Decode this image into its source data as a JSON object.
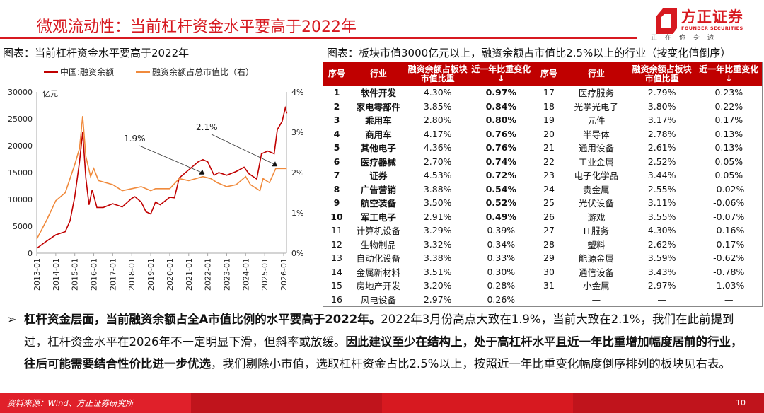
{
  "header": {
    "title": "微观流动性：当前杠杆资金水平要高于2022年",
    "logo_cn": "方正证券",
    "logo_en": "FOUNDER SECURITIES",
    "slogan": "正在你身边",
    "brand_color": "#d71920"
  },
  "left_chart": {
    "caption": "图表：当前杠杆资金水平要高于2022年"
  },
  "chart_data": {
    "type": "line",
    "legend_position": "top",
    "y_left": {
      "label": "亿元",
      "ticks": [
        "0",
        "5000",
        "10000",
        "15000",
        "20000",
        "25000",
        "30000"
      ],
      "range": [
        0,
        30000
      ]
    },
    "y_right": {
      "ticks": [
        "0%",
        "1%",
        "2%",
        "3%",
        "4%"
      ],
      "range": [
        0,
        4
      ]
    },
    "x_ticks": [
      "2013-01",
      "2014-01",
      "2015-01",
      "2016-01",
      "2017-01",
      "2018-01",
      "2019-01",
      "2020-01",
      "2021-01",
      "2022-01",
      "2023-01",
      "2024-01",
      "2025-01",
      "2026-01"
    ],
    "series": [
      {
        "name": "中国:融资余额",
        "axis": "left",
        "color": "#c00000",
        "points": [
          [
            "2013-01",
            900
          ],
          [
            "2013-07",
            2200
          ],
          [
            "2014-01",
            3400
          ],
          [
            "2014-07",
            4000
          ],
          [
            "2014-10",
            6000
          ],
          [
            "2015-01",
            10500
          ],
          [
            "2015-04",
            17000
          ],
          [
            "2015-06",
            22500
          ],
          [
            "2015-08",
            14000
          ],
          [
            "2015-10",
            9000
          ],
          [
            "2015-12",
            11800
          ],
          [
            "2016-03",
            8500
          ],
          [
            "2016-07",
            8500
          ],
          [
            "2017-01",
            9200
          ],
          [
            "2017-07",
            8600
          ],
          [
            "2018-01",
            10200
          ],
          [
            "2018-03",
            10500
          ],
          [
            "2018-07",
            9500
          ],
          [
            "2018-10",
            7700
          ],
          [
            "2019-01",
            7300
          ],
          [
            "2019-04",
            9500
          ],
          [
            "2019-07",
            9000
          ],
          [
            "2020-01",
            10400
          ],
          [
            "2020-04",
            10300
          ],
          [
            "2020-07",
            14000
          ],
          [
            "2021-01",
            15500
          ],
          [
            "2021-07",
            17000
          ],
          [
            "2021-10",
            17400
          ],
          [
            "2022-01",
            17000
          ],
          [
            "2022-05",
            14500
          ],
          [
            "2022-08",
            15000
          ],
          [
            "2023-01",
            14500
          ],
          [
            "2023-07",
            15200
          ],
          [
            "2023-12",
            16000
          ],
          [
            "2024-03",
            14800
          ],
          [
            "2024-08",
            13800
          ],
          [
            "2024-11",
            18500
          ],
          [
            "2025-03",
            19000
          ],
          [
            "2025-07",
            18500
          ],
          [
            "2025-09",
            23000
          ],
          [
            "2025-12",
            24500
          ],
          [
            "2026-02",
            27000
          ],
          [
            "2026-03",
            26000
          ]
        ]
      },
      {
        "name": "融资余额占总市值比（右）",
        "axis": "right",
        "color": "#f08a3c",
        "points": [
          [
            "2013-01",
            0.35
          ],
          [
            "2013-07",
            0.8
          ],
          [
            "2014-01",
            1.3
          ],
          [
            "2014-07",
            1.5
          ],
          [
            "2015-01",
            2.2
          ],
          [
            "2015-04",
            2.6
          ],
          [
            "2015-06",
            3.4
          ],
          [
            "2015-08",
            2.4
          ],
          [
            "2015-11",
            1.9
          ],
          [
            "2016-01",
            2.1
          ],
          [
            "2016-04",
            1.8
          ],
          [
            "2017-01",
            1.7
          ],
          [
            "2017-07",
            1.55
          ],
          [
            "2018-01",
            1.6
          ],
          [
            "2018-07",
            1.65
          ],
          [
            "2019-01",
            1.55
          ],
          [
            "2019-04",
            1.6
          ],
          [
            "2020-01",
            1.6
          ],
          [
            "2020-07",
            1.85
          ],
          [
            "2021-01",
            1.8
          ],
          [
            "2021-10",
            1.9
          ],
          [
            "2022-03",
            1.85
          ],
          [
            "2022-07",
            1.75
          ],
          [
            "2023-01",
            1.65
          ],
          [
            "2023-07",
            1.7
          ],
          [
            "2024-01",
            1.9
          ],
          [
            "2024-04",
            1.7
          ],
          [
            "2024-10",
            1.55
          ],
          [
            "2024-12",
            1.85
          ],
          [
            "2025-04",
            1.75
          ],
          [
            "2025-08",
            2.1
          ],
          [
            "2026-03",
            2.1
          ]
        ]
      }
    ],
    "annotations": [
      {
        "text": "1.9%",
        "target": [
          "2021-11",
          1.9
        ]
      },
      {
        "text": "2.1%",
        "target": [
          "2025-09",
          2.1
        ]
      }
    ]
  },
  "table": {
    "caption": "图表：板块市值3000亿元以上，融资余额占市值比2.5%以上的行业（按变化值倒序）",
    "headers": [
      "序号",
      "行业",
      "融资余额占板块市值比重",
      "近一年比重变化↓"
    ],
    "left_rows": [
      [
        "1",
        "软件开发",
        "4.30%",
        "0.97%"
      ],
      [
        "2",
        "家电零部件",
        "3.85%",
        "0.84%"
      ],
      [
        "3",
        "乘用车",
        "2.80%",
        "0.80%"
      ],
      [
        "4",
        "商用车",
        "4.17%",
        "0.76%"
      ],
      [
        "5",
        "其他电子",
        "4.36%",
        "0.76%"
      ],
      [
        "6",
        "医疗器械",
        "2.70%",
        "0.74%"
      ],
      [
        "7",
        "证券",
        "4.53%",
        "0.72%"
      ],
      [
        "8",
        "广告营销",
        "3.88%",
        "0.54%"
      ],
      [
        "9",
        "航空装备",
        "3.50%",
        "0.52%"
      ],
      [
        "10",
        "军工电子",
        "2.91%",
        "0.49%"
      ],
      [
        "11",
        "计算机设备",
        "3.29%",
        "0.39%"
      ],
      [
        "12",
        "生物制品",
        "3.32%",
        "0.34%"
      ],
      [
        "13",
        "自动化设备",
        "3.38%",
        "0.33%"
      ],
      [
        "14",
        "金属新材料",
        "3.51%",
        "0.30%"
      ],
      [
        "15",
        "房地产开发",
        "3.20%",
        "0.28%"
      ],
      [
        "16",
        "风电设备",
        "2.97%",
        "0.26%"
      ]
    ],
    "right_rows": [
      [
        "17",
        "医疗服务",
        "2.79%",
        "0.23%"
      ],
      [
        "18",
        "光学光电子",
        "3.80%",
        "0.22%"
      ],
      [
        "19",
        "元件",
        "3.17%",
        "0.17%"
      ],
      [
        "20",
        "半导体",
        "2.78%",
        "0.13%"
      ],
      [
        "21",
        "通用设备",
        "2.61%",
        "0.13%"
      ],
      [
        "22",
        "工业金属",
        "2.52%",
        "0.05%"
      ],
      [
        "23",
        "电子化学品",
        "3.44%",
        "0.05%"
      ],
      [
        "24",
        "贵金属",
        "2.55%",
        "-0.02%"
      ],
      [
        "25",
        "光伏设备",
        "3.11%",
        "-0.06%"
      ],
      [
        "26",
        "游戏",
        "3.55%",
        "-0.07%"
      ],
      [
        "27",
        "IT服务",
        "4.30%",
        "-0.16%"
      ],
      [
        "28",
        "塑料",
        "2.62%",
        "-0.17%"
      ],
      [
        "29",
        "能源金属",
        "3.59%",
        "-0.62%"
      ],
      [
        "30",
        "通信设备",
        "3.43%",
        "-0.78%"
      ],
      [
        "31",
        "小金属",
        "2.97%",
        "-1.03%"
      ],
      [
        "",
        "—",
        "—",
        "—"
      ]
    ],
    "header_color": "#c00000"
  },
  "body": {
    "bullet": "➢",
    "p1_bold": "杠杆资金层面，当前融资余额占全A市值比例的水平要高于2022年。",
    "p1": "2022年3月份高点大致在1.9%，当前大致在2.1%，我们在此前提到过，杠杆资金水平在2026年不一定明显下滑，但斜率或放缓。",
    "p2_bold": "因此建议至少在结构上，处于高杠杆水平且近一年比重增加幅度居前的行业，往后可能需要结合性价比进一步优选",
    "p2": "，我们剔除小市值，选取杠杆资金占比2.5%以上，按照近一年比重变化幅度倒序排列的板块见右表。"
  },
  "footer": {
    "source": "资料来源：Wind、方正证券研究所",
    "page": "10"
  }
}
